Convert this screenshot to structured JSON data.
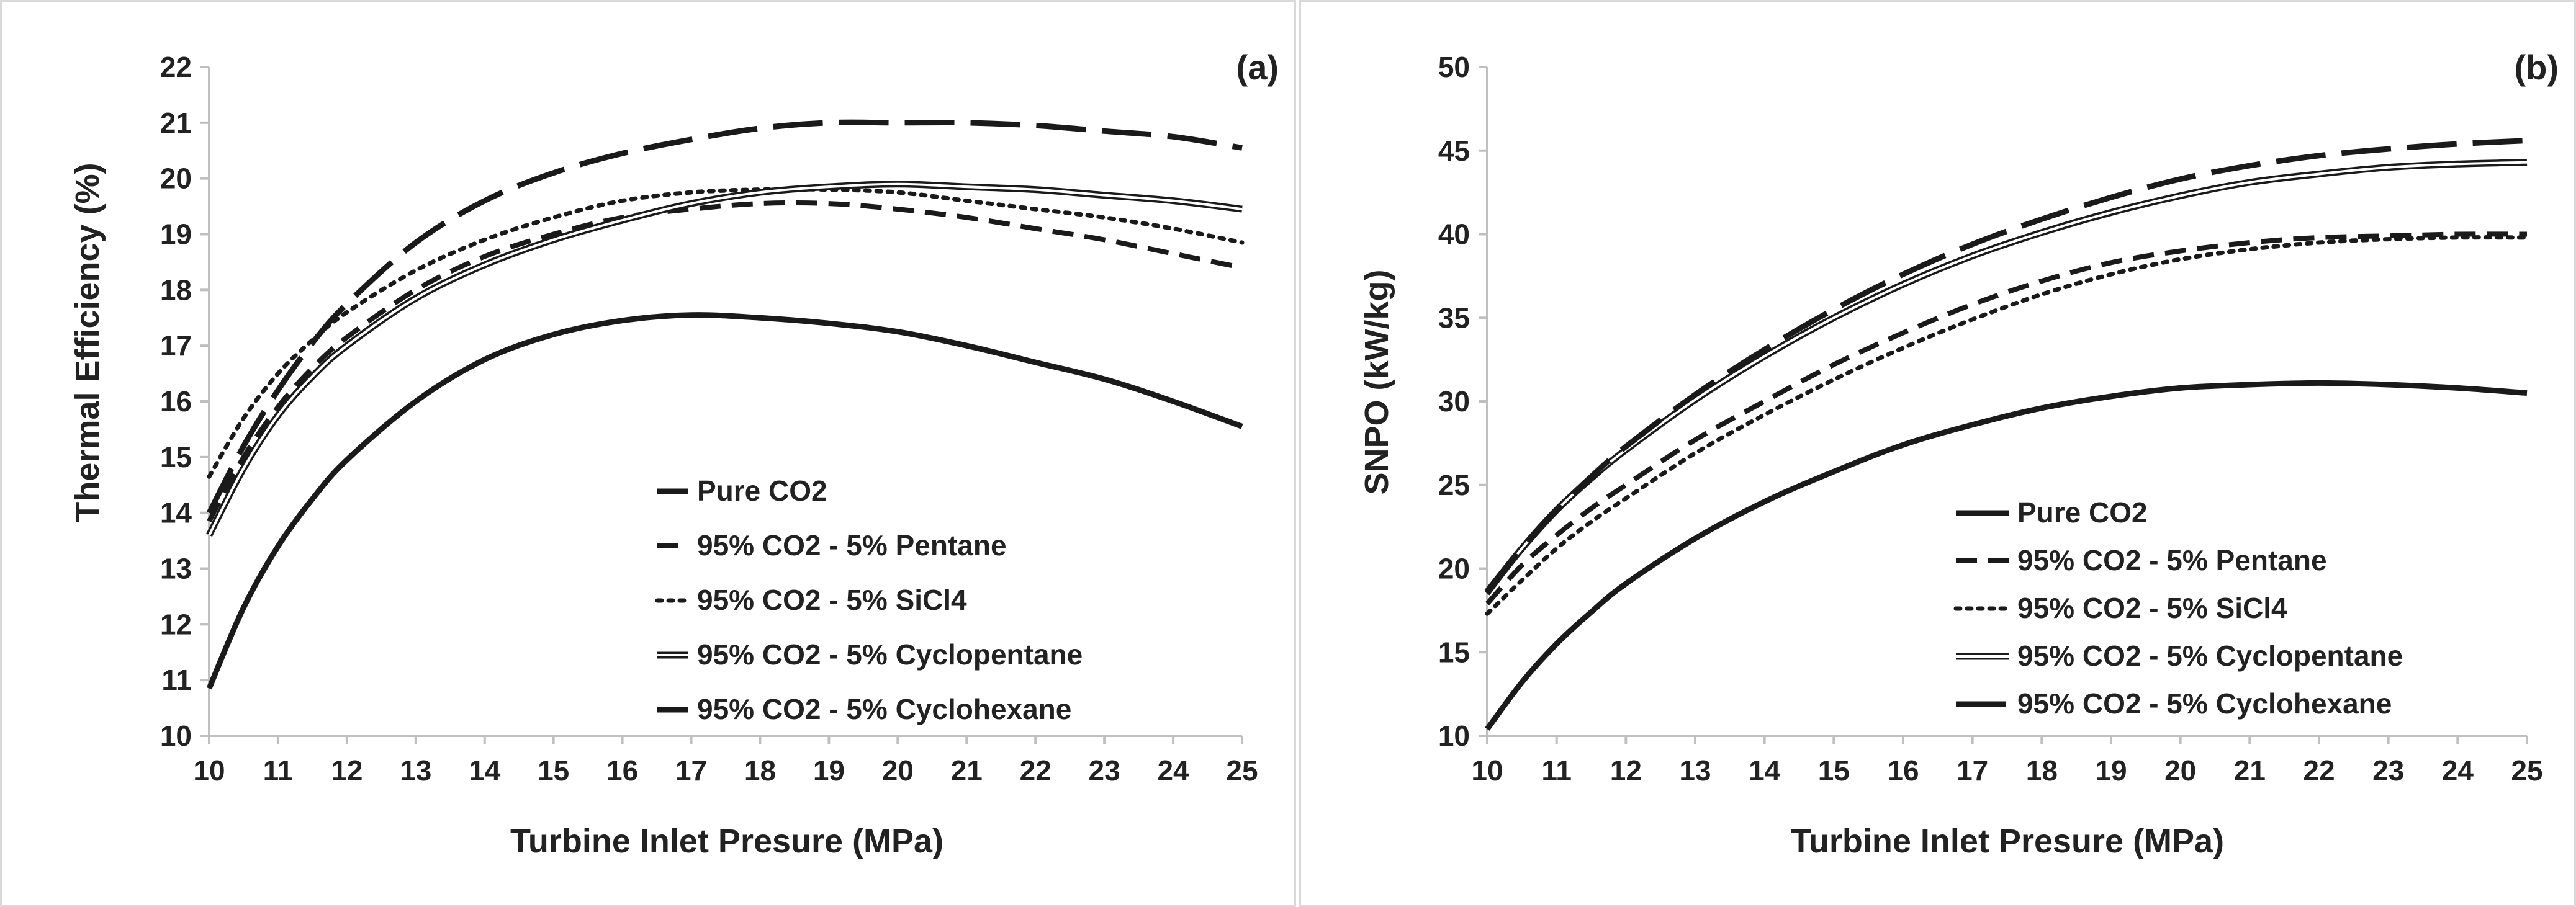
{
  "line_styles": {
    "Pure CO2": "solid",
    "95% CO2 - 5% Pentane": "dashed",
    "95% CO2 - 5% SiCl4": "dotted",
    "95% CO2 - 5% Cyclopentane": "double",
    "95% CO2 - 5% Cyclohexane": "longdash"
  },
  "chart_data": [
    {
      "type": "line",
      "panel_label": "(a)",
      "xlabel": "Turbine Inlet Presure (MPa)",
      "ylabel": "Thermal Efficiency (%)",
      "xlim": [
        10,
        25
      ],
      "ylim": [
        10,
        22
      ],
      "xticks": [
        "10",
        "11",
        "12",
        "13",
        "14",
        "15",
        "16",
        "17",
        "18",
        "19",
        "20",
        "21",
        "22",
        "23",
        "24",
        "25"
      ],
      "yticks": [
        "10",
        "11",
        "12",
        "13",
        "14",
        "15",
        "16",
        "17",
        "18",
        "19",
        "20",
        "21",
        "22"
      ],
      "legend_position": "bottom-right",
      "x": [
        10,
        10.5,
        11,
        11.5,
        12,
        13,
        14,
        15,
        16,
        17,
        18,
        19,
        20,
        21,
        22,
        23,
        24,
        25
      ],
      "series": [
        {
          "name": "Pure CO2",
          "values": [
            10.85,
            12.3,
            13.4,
            14.25,
            14.95,
            16.0,
            16.75,
            17.2,
            17.45,
            17.55,
            17.5,
            17.4,
            17.25,
            17.0,
            16.7,
            16.4,
            16.0,
            15.55
          ]
        },
        {
          "name": "95% CO2 - 5% Pentane",
          "values": [
            13.85,
            15.0,
            15.9,
            16.6,
            17.15,
            18.0,
            18.6,
            19.0,
            19.3,
            19.45,
            19.55,
            19.55,
            19.45,
            19.3,
            19.1,
            18.9,
            18.65,
            18.4
          ]
        },
        {
          "name": "95% CO2 - 5% SiCl4",
          "values": [
            14.65,
            15.7,
            16.5,
            17.1,
            17.6,
            18.35,
            18.9,
            19.3,
            19.6,
            19.75,
            19.8,
            19.8,
            19.75,
            19.6,
            19.45,
            19.3,
            19.1,
            18.85
          ]
        },
        {
          "name": "95% CO2 - 5% Cyclopentane",
          "values": [
            13.6,
            14.8,
            15.75,
            16.45,
            17.0,
            17.85,
            18.45,
            18.9,
            19.25,
            19.55,
            19.75,
            19.85,
            19.9,
            19.85,
            19.8,
            19.7,
            19.6,
            19.45
          ]
        },
        {
          "name": "95% CO2 - 5% Cyclohexane",
          "values": [
            14.0,
            15.2,
            16.2,
            17.05,
            17.75,
            18.85,
            19.6,
            20.1,
            20.45,
            20.7,
            20.9,
            21.0,
            21.0,
            21.0,
            20.95,
            20.85,
            20.75,
            20.55
          ]
        }
      ]
    },
    {
      "type": "line",
      "panel_label": "(b)",
      "xlabel": "Turbine Inlet Presure (MPa)",
      "ylabel": "SNPO (kW/kg)",
      "xlim": [
        10,
        25
      ],
      "ylim": [
        10,
        50
      ],
      "xticks": [
        "10",
        "11",
        "12",
        "13",
        "14",
        "15",
        "16",
        "17",
        "18",
        "19",
        "20",
        "21",
        "22",
        "23",
        "24",
        "25"
      ],
      "yticks": [
        "10",
        "15",
        "20",
        "25",
        "30",
        "35",
        "40",
        "45",
        "50"
      ],
      "legend_position": "bottom-right",
      "x": [
        10,
        10.5,
        11,
        11.5,
        12,
        13,
        14,
        15,
        16,
        17,
        18,
        19,
        20,
        21,
        22,
        23,
        24,
        25
      ],
      "series": [
        {
          "name": "Pure CO2",
          "values": [
            10.4,
            13.2,
            15.5,
            17.4,
            19.1,
            21.8,
            24.0,
            25.8,
            27.4,
            28.6,
            29.6,
            30.3,
            30.8,
            31.0,
            31.1,
            31.0,
            30.8,
            30.5
          ]
        },
        {
          "name": "95% CO2 - 5% Pentane",
          "values": [
            17.9,
            20.2,
            22.0,
            23.6,
            25.0,
            27.7,
            30.0,
            32.2,
            34.1,
            35.8,
            37.2,
            38.3,
            39.0,
            39.5,
            39.8,
            39.9,
            40.0,
            40.0
          ]
        },
        {
          "name": "95% CO2 - 5% SiCl4",
          "values": [
            17.3,
            19.3,
            21.2,
            22.8,
            24.2,
            26.9,
            29.2,
            31.3,
            33.2,
            34.9,
            36.4,
            37.6,
            38.5,
            39.1,
            39.5,
            39.7,
            39.8,
            39.8
          ]
        },
        {
          "name": "95% CO2 - 5% Cyclopentane",
          "values": [
            18.6,
            21.2,
            23.5,
            25.4,
            27.1,
            30.1,
            32.7,
            35.0,
            37.0,
            38.7,
            40.1,
            41.3,
            42.3,
            43.1,
            43.6,
            44.0,
            44.2,
            44.3
          ]
        },
        {
          "name": "95% CO2 - 5% Cyclohexane",
          "values": [
            18.5,
            21.2,
            23.5,
            25.5,
            27.3,
            30.4,
            33.1,
            35.5,
            37.6,
            39.4,
            40.9,
            42.2,
            43.3,
            44.1,
            44.7,
            45.1,
            45.4,
            45.6
          ]
        }
      ]
    }
  ]
}
